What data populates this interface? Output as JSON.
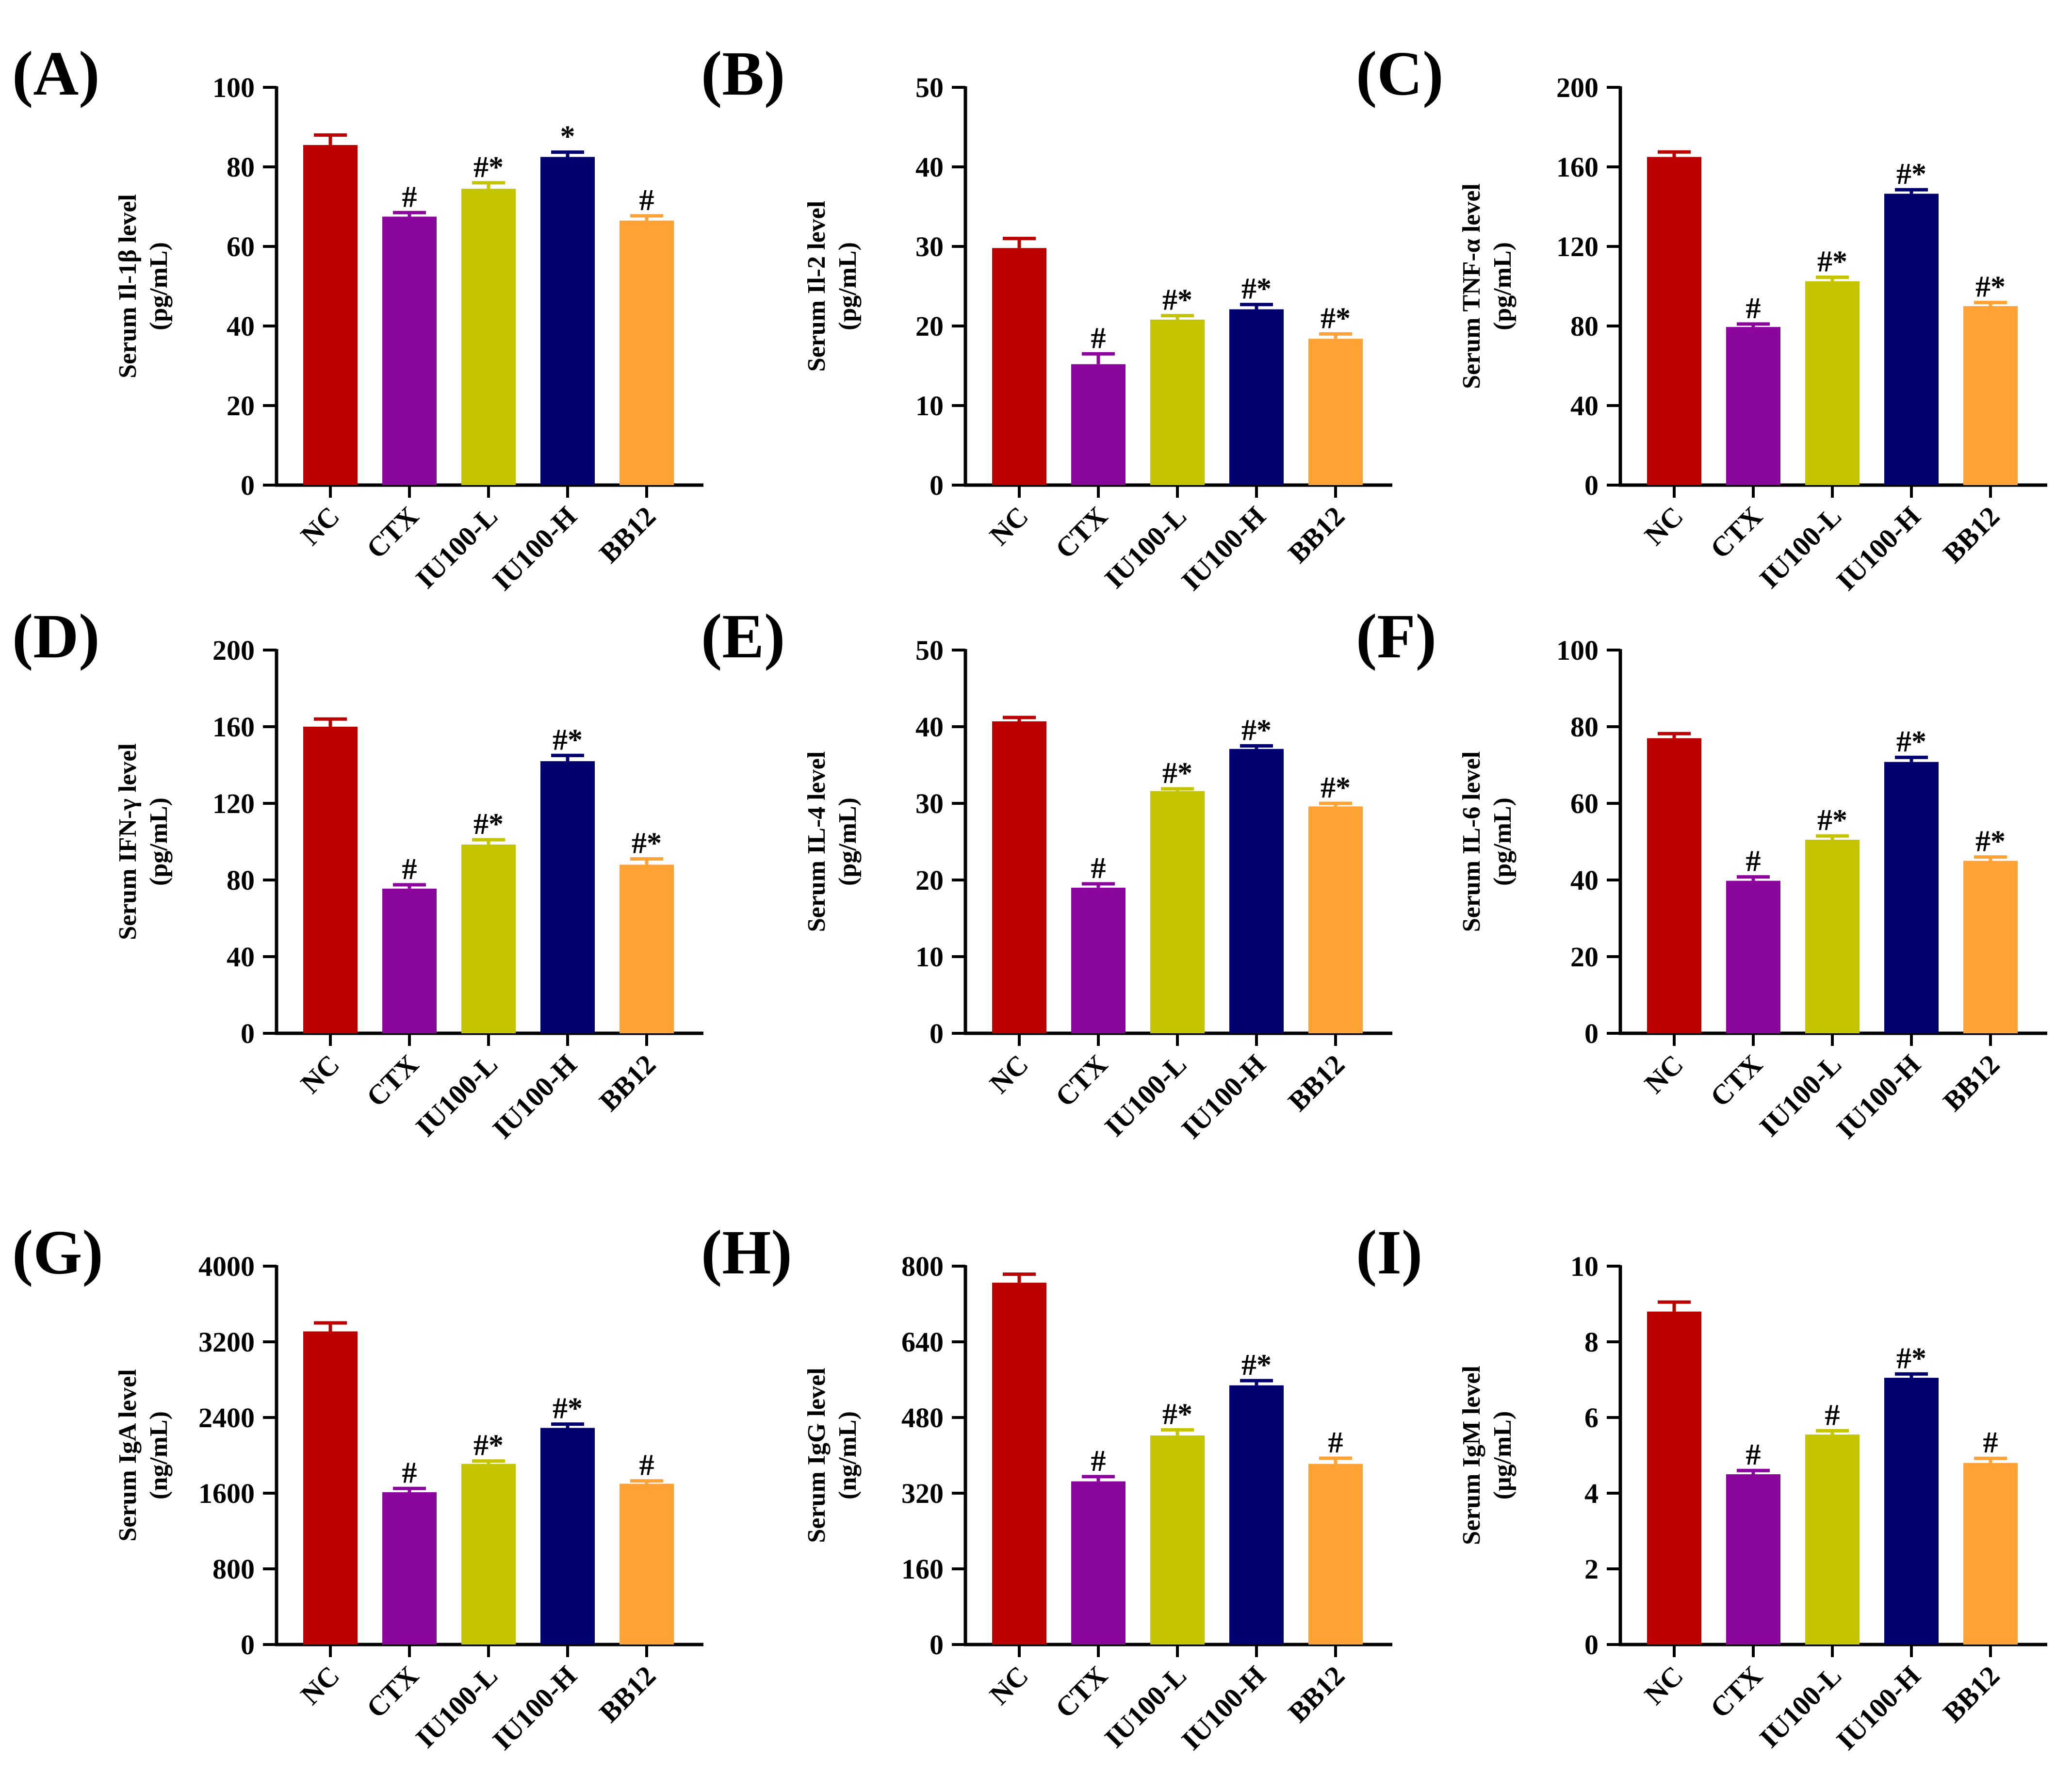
{
  "figure": {
    "categories": [
      "NC",
      "CTX",
      "IU100-L",
      "IU100-H",
      "BB12"
    ],
    "colors": [
      "#BC0000",
      "#8B069D",
      "#C4C400",
      "#00006E",
      "#FFA235"
    ]
  },
  "chart_data": [
    {
      "type": "bar",
      "panel": "(A)",
      "ylabel": "Serum Il-1β level",
      "unit": "(pg/mL)",
      "ylim": [
        0,
        100
      ],
      "ticks": [
        0,
        20,
        40,
        60,
        80,
        100
      ],
      "categories": [
        "NC",
        "CTX",
        "IU100-L",
        "IU100-H",
        "BB12"
      ],
      "values": [
        85.5,
        67.5,
        74.5,
        82.5,
        66.5
      ],
      "errors": [
        2.5,
        1.0,
        1.5,
        1.2,
        1.2
      ],
      "labels": [
        "",
        "#",
        "#*",
        "*",
        "#"
      ]
    },
    {
      "type": "bar",
      "panel": "(B)",
      "ylabel": "Serum Il-2 level",
      "unit": "(pg/mL)",
      "ylim": [
        0,
        50
      ],
      "ticks": [
        0,
        10,
        20,
        30,
        40,
        50
      ],
      "categories": [
        "NC",
        "CTX",
        "IU100-L",
        "IU100-H",
        "BB12"
      ],
      "values": [
        29.8,
        15.2,
        20.8,
        22.1,
        18.4
      ],
      "errors": [
        1.2,
        1.3,
        0.5,
        0.6,
        0.6
      ],
      "labels": [
        "",
        "#",
        "#*",
        "#*",
        "#*"
      ]
    },
    {
      "type": "bar",
      "panel": "(C)",
      "ylabel": "Serum TNF-α level",
      "unit": "(pg/mL)",
      "ylim": [
        0,
        200
      ],
      "ticks": [
        0,
        40,
        80,
        120,
        160,
        200
      ],
      "categories": [
        "NC",
        "CTX",
        "IU100-L",
        "IU100-H",
        "BB12"
      ],
      "values": [
        165,
        79.5,
        102.5,
        146.5,
        90
      ],
      "errors": [
        2.5,
        1.5,
        2.0,
        2.0,
        1.8
      ],
      "labels": [
        "",
        "#",
        "#*",
        "#*",
        "#*"
      ]
    },
    {
      "type": "bar",
      "panel": "(D)",
      "ylabel": "Serum IFN-γ level",
      "unit": "(pg/mL)",
      "ylim": [
        0,
        200
      ],
      "ticks": [
        0,
        40,
        80,
        120,
        160,
        200
      ],
      "categories": [
        "NC",
        "CTX",
        "IU100-L",
        "IU100-H",
        "BB12"
      ],
      "values": [
        160,
        75.5,
        98.5,
        142,
        88
      ],
      "errors": [
        4.0,
        2.0,
        2.5,
        3.0,
        3.0
      ],
      "labels": [
        "",
        "#",
        "#*",
        "#*",
        "#*"
      ]
    },
    {
      "type": "bar",
      "panel": "(E)",
      "ylabel": "Serum IL-4 level",
      "unit": "(pg/mL)",
      "ylim": [
        0,
        50
      ],
      "ticks": [
        0,
        10,
        20,
        30,
        40,
        50
      ],
      "categories": [
        "NC",
        "CTX",
        "IU100-L",
        "IU100-H",
        "BB12"
      ],
      "values": [
        40.7,
        19.0,
        31.6,
        37.1,
        29.6
      ],
      "errors": [
        0.5,
        0.5,
        0.3,
        0.4,
        0.4
      ],
      "labels": [
        "",
        "#",
        "#*",
        "#*",
        "#*"
      ]
    },
    {
      "type": "bar",
      "panel": "(F)",
      "ylabel": "Serum IL-6 level",
      "unit": "(pg/mL)",
      "ylim": [
        0,
        100
      ],
      "ticks": [
        0,
        20,
        40,
        60,
        80,
        100
      ],
      "categories": [
        "NC",
        "CTX",
        "IU100-L",
        "IU100-H",
        "BB12"
      ],
      "values": [
        77,
        39.8,
        50.5,
        70.8,
        45
      ],
      "errors": [
        1.2,
        1.0,
        1.0,
        1.2,
        1.0
      ],
      "labels": [
        "",
        "#",
        "#*",
        "#*",
        "#*"
      ]
    },
    {
      "type": "bar",
      "panel": "(G)",
      "ylabel": "Serum IgA level",
      "unit": "(ng/mL)",
      "ylim": [
        0,
        4000
      ],
      "ticks": [
        0,
        800,
        1600,
        2400,
        3200,
        4000
      ],
      "categories": [
        "NC",
        "CTX",
        "IU100-L",
        "IU100-H",
        "BB12"
      ],
      "values": [
        3310,
        1610,
        1910,
        2290,
        1700
      ],
      "errors": [
        90,
        40,
        30,
        40,
        30
      ],
      "labels": [
        "",
        "#",
        "#*",
        "#*",
        "#"
      ]
    },
    {
      "type": "bar",
      "panel": "(H)",
      "ylabel": "Serum IgG level",
      "unit": "(ng/mL)",
      "ylim": [
        0,
        800
      ],
      "ticks": [
        0,
        160,
        320,
        480,
        640,
        800
      ],
      "categories": [
        "NC",
        "CTX",
        "IU100-L",
        "IU100-H",
        "BB12"
      ],
      "values": [
        765,
        345,
        442,
        548,
        382
      ],
      "errors": [
        18,
        10,
        12,
        10,
        12
      ],
      "labels": [
        "",
        "#",
        "#*",
        "#*",
        "#"
      ]
    },
    {
      "type": "bar",
      "panel": "(I)",
      "ylabel": "Serum IgM level",
      "unit": "(μg/mL)",
      "ylim": [
        0,
        10
      ],
      "ticks": [
        0,
        2,
        4,
        6,
        8,
        10
      ],
      "categories": [
        "NC",
        "CTX",
        "IU100-L",
        "IU100-H",
        "BB12"
      ],
      "values": [
        8.8,
        4.5,
        5.55,
        7.05,
        4.8
      ],
      "errors": [
        0.25,
        0.1,
        0.1,
        0.1,
        0.12
      ],
      "labels": [
        "",
        "#",
        "#",
        "#*",
        "#"
      ]
    }
  ]
}
